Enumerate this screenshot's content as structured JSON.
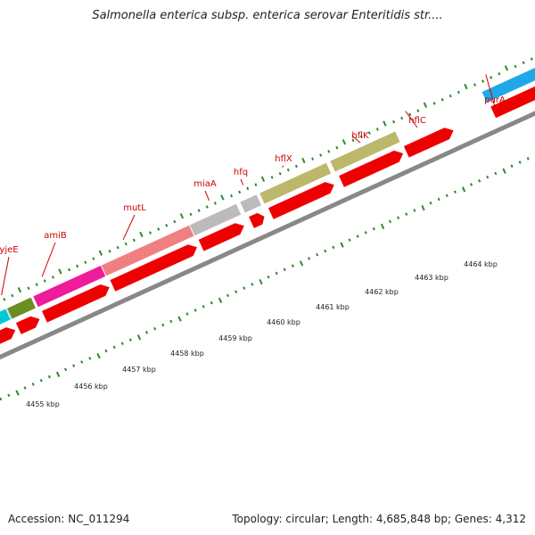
{
  "title": "Salmonella enterica subsp. enterica serovar Enteritidis str....",
  "footer": {
    "accession": "Accession: NC_011294",
    "summary": "Topology: circular; Length: 4,685,848 bp; Genes: 4,312"
  },
  "colors": {
    "cds": "#ee0000",
    "backbone": "#888888",
    "tick_green": "#2a8a2a",
    "label_red": "#cc0000"
  },
  "genes": [
    {
      "name": "yjeE",
      "color": "#00c8d8"
    },
    {
      "name": "amiB",
      "color": "#6b8e23"
    },
    {
      "name": "mutL",
      "color": "#ee1b9a"
    },
    {
      "name": "miaA",
      "color": "#f08080"
    },
    {
      "name": "hfq",
      "color": "#bbbbbb"
    },
    {
      "name": "hflX",
      "color": "#bbbbbb"
    },
    {
      "name": "hflK",
      "color": "#bdb76b"
    },
    {
      "name": "hflC",
      "color": "#bdb76b"
    },
    {
      "name": "purA",
      "color": "#1fa8e8"
    }
  ],
  "unlabeled_segments": [
    {
      "color": "#bbbbbb"
    }
  ],
  "kbp_labels": [
    "4455 kbp",
    "4456 kbp",
    "4457 kbp",
    "4458 kbp",
    "4459 kbp",
    "4460 kbp",
    "4461 kbp",
    "4462 kbp",
    "4463 kbp",
    "4464 kbp"
  ]
}
